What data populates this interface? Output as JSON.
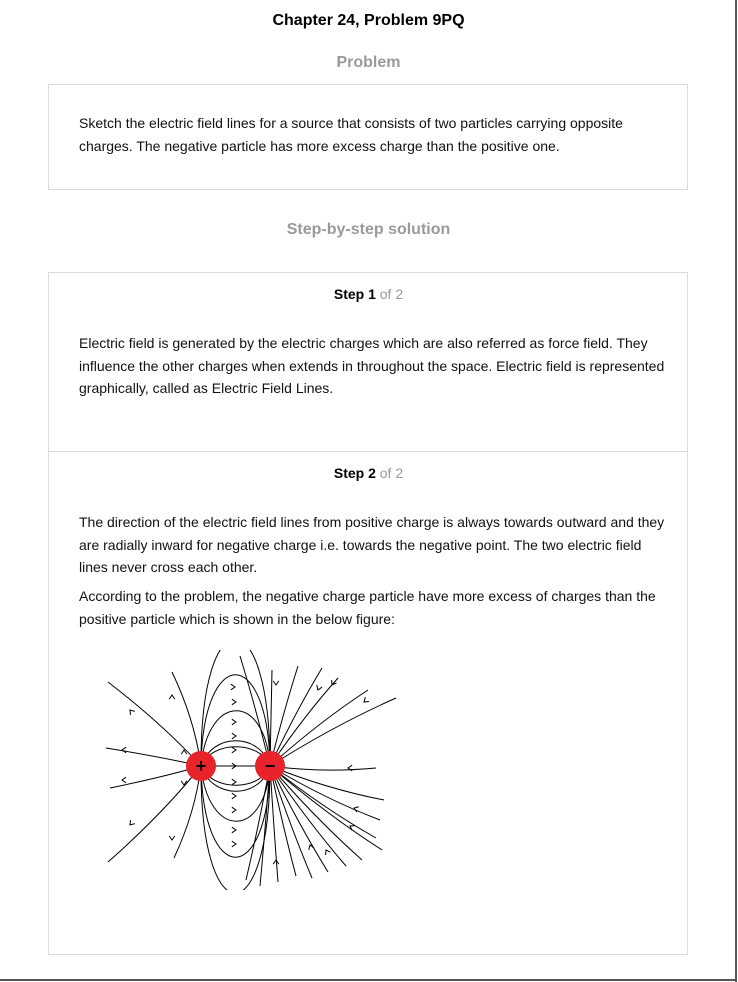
{
  "header": {
    "title": "Chapter 24, Problem 9PQ"
  },
  "problem": {
    "heading": "Problem",
    "text": "Sketch the electric field lines for a source that consists of two particles carrying opposite charges. The negative particle has more excess charge than the positive one."
  },
  "solution": {
    "heading": "Step-by-step solution",
    "steps": [
      {
        "label": "Step 1",
        "of": "of 2",
        "paragraphs": [
          "Electric field is generated by the electric charges which are also referred as force field. They influence the other charges when extends in throughout the space. Electric field is represented graphically, called as Electric Field Lines."
        ]
      },
      {
        "label": "Step 2",
        "of": "of 2",
        "paragraphs": [
          "The direction of the electric field lines from positive charge is always towards outward and they are radially inward for negative charge i.e. towards the negative point. The two electric field lines never cross each other.",
          "According to the problem, the negative charge particle have more excess of charges than the positive particle which is shown in the below figure:"
        ]
      }
    ]
  },
  "figure": {
    "positive_symbol": "+",
    "negative_symbol": "−",
    "charge_color": "#e8232a",
    "line_color": "#000000"
  }
}
